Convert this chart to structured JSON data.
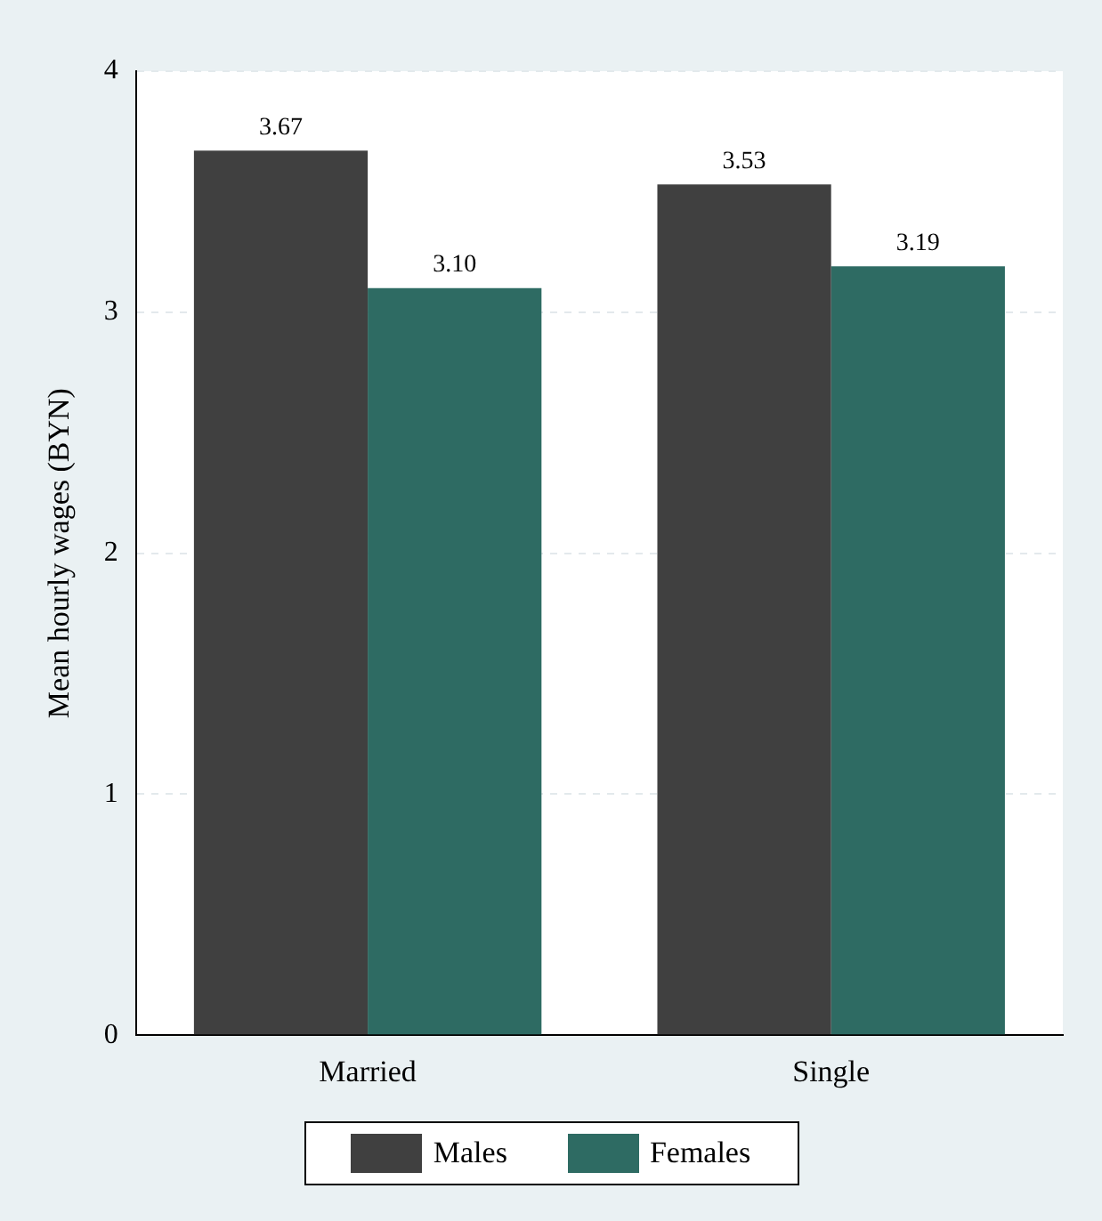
{
  "chart_data": {
    "type": "bar",
    "ylabel": "Mean hourly wages (BYN)",
    "categories": [
      "Married",
      "Single"
    ],
    "series": [
      {
        "name": "Males",
        "color": "#404040",
        "values": [
          3.67,
          3.53
        ],
        "value_labels": [
          "3.67",
          "3.53"
        ]
      },
      {
        "name": "Females",
        "color": "#2e6b63",
        "values": [
          3.1,
          3.19
        ],
        "value_labels": [
          "3.10",
          "3.19"
        ]
      }
    ],
    "ylim": [
      0,
      4
    ],
    "yticks": [
      0,
      1,
      2,
      3,
      4
    ],
    "grid": "y",
    "legend": "bottom"
  }
}
